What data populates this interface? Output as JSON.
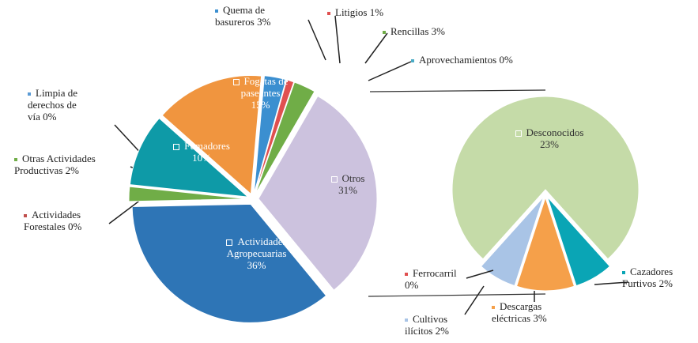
{
  "chart_data": [
    {
      "type": "pie",
      "categories": [
        "Otros",
        "Actividades Agropecuarias",
        "Actividades Forestales",
        "Otras Actividades Productivas",
        "Limpia de derechos de vía",
        "Fumadores",
        "Fogatas de paseantes",
        "Quema de basureros",
        "Litigios",
        "Rencillas",
        "Aprovechamientos"
      ],
      "values": [
        31,
        36,
        0,
        2,
        0,
        10,
        15,
        3,
        1,
        3,
        0
      ],
      "value_labels": [
        "31%",
        "36%",
        "0%",
        "2%",
        "0%",
        "10%",
        "15%",
        "3%",
        "1%",
        "3%",
        "0%"
      ],
      "colors": [
        "#ccc2de",
        "#2e75b6",
        "#c0504d",
        "#70ad47",
        "#5b9bd5",
        "#0e9aa7",
        "#f0953f",
        "#3b8fd0",
        "#e05050",
        "#70ad47",
        "#4bacc6"
      ]
    },
    {
      "type": "pie",
      "categories": [
        "Desconocidos",
        "Cazadores Furtivos",
        "Descargas eléctricas",
        "Cultivos ilícitos",
        "Ferrocarril"
      ],
      "values": [
        23,
        2,
        3,
        2,
        0
      ],
      "value_labels": [
        "23%",
        "2%",
        "3%",
        "2%",
        "0%"
      ],
      "colors": [
        "#c5dba8",
        "#0aa5b5",
        "#f5a04a",
        "#a9c4e6",
        "#e05050"
      ]
    }
  ]
}
